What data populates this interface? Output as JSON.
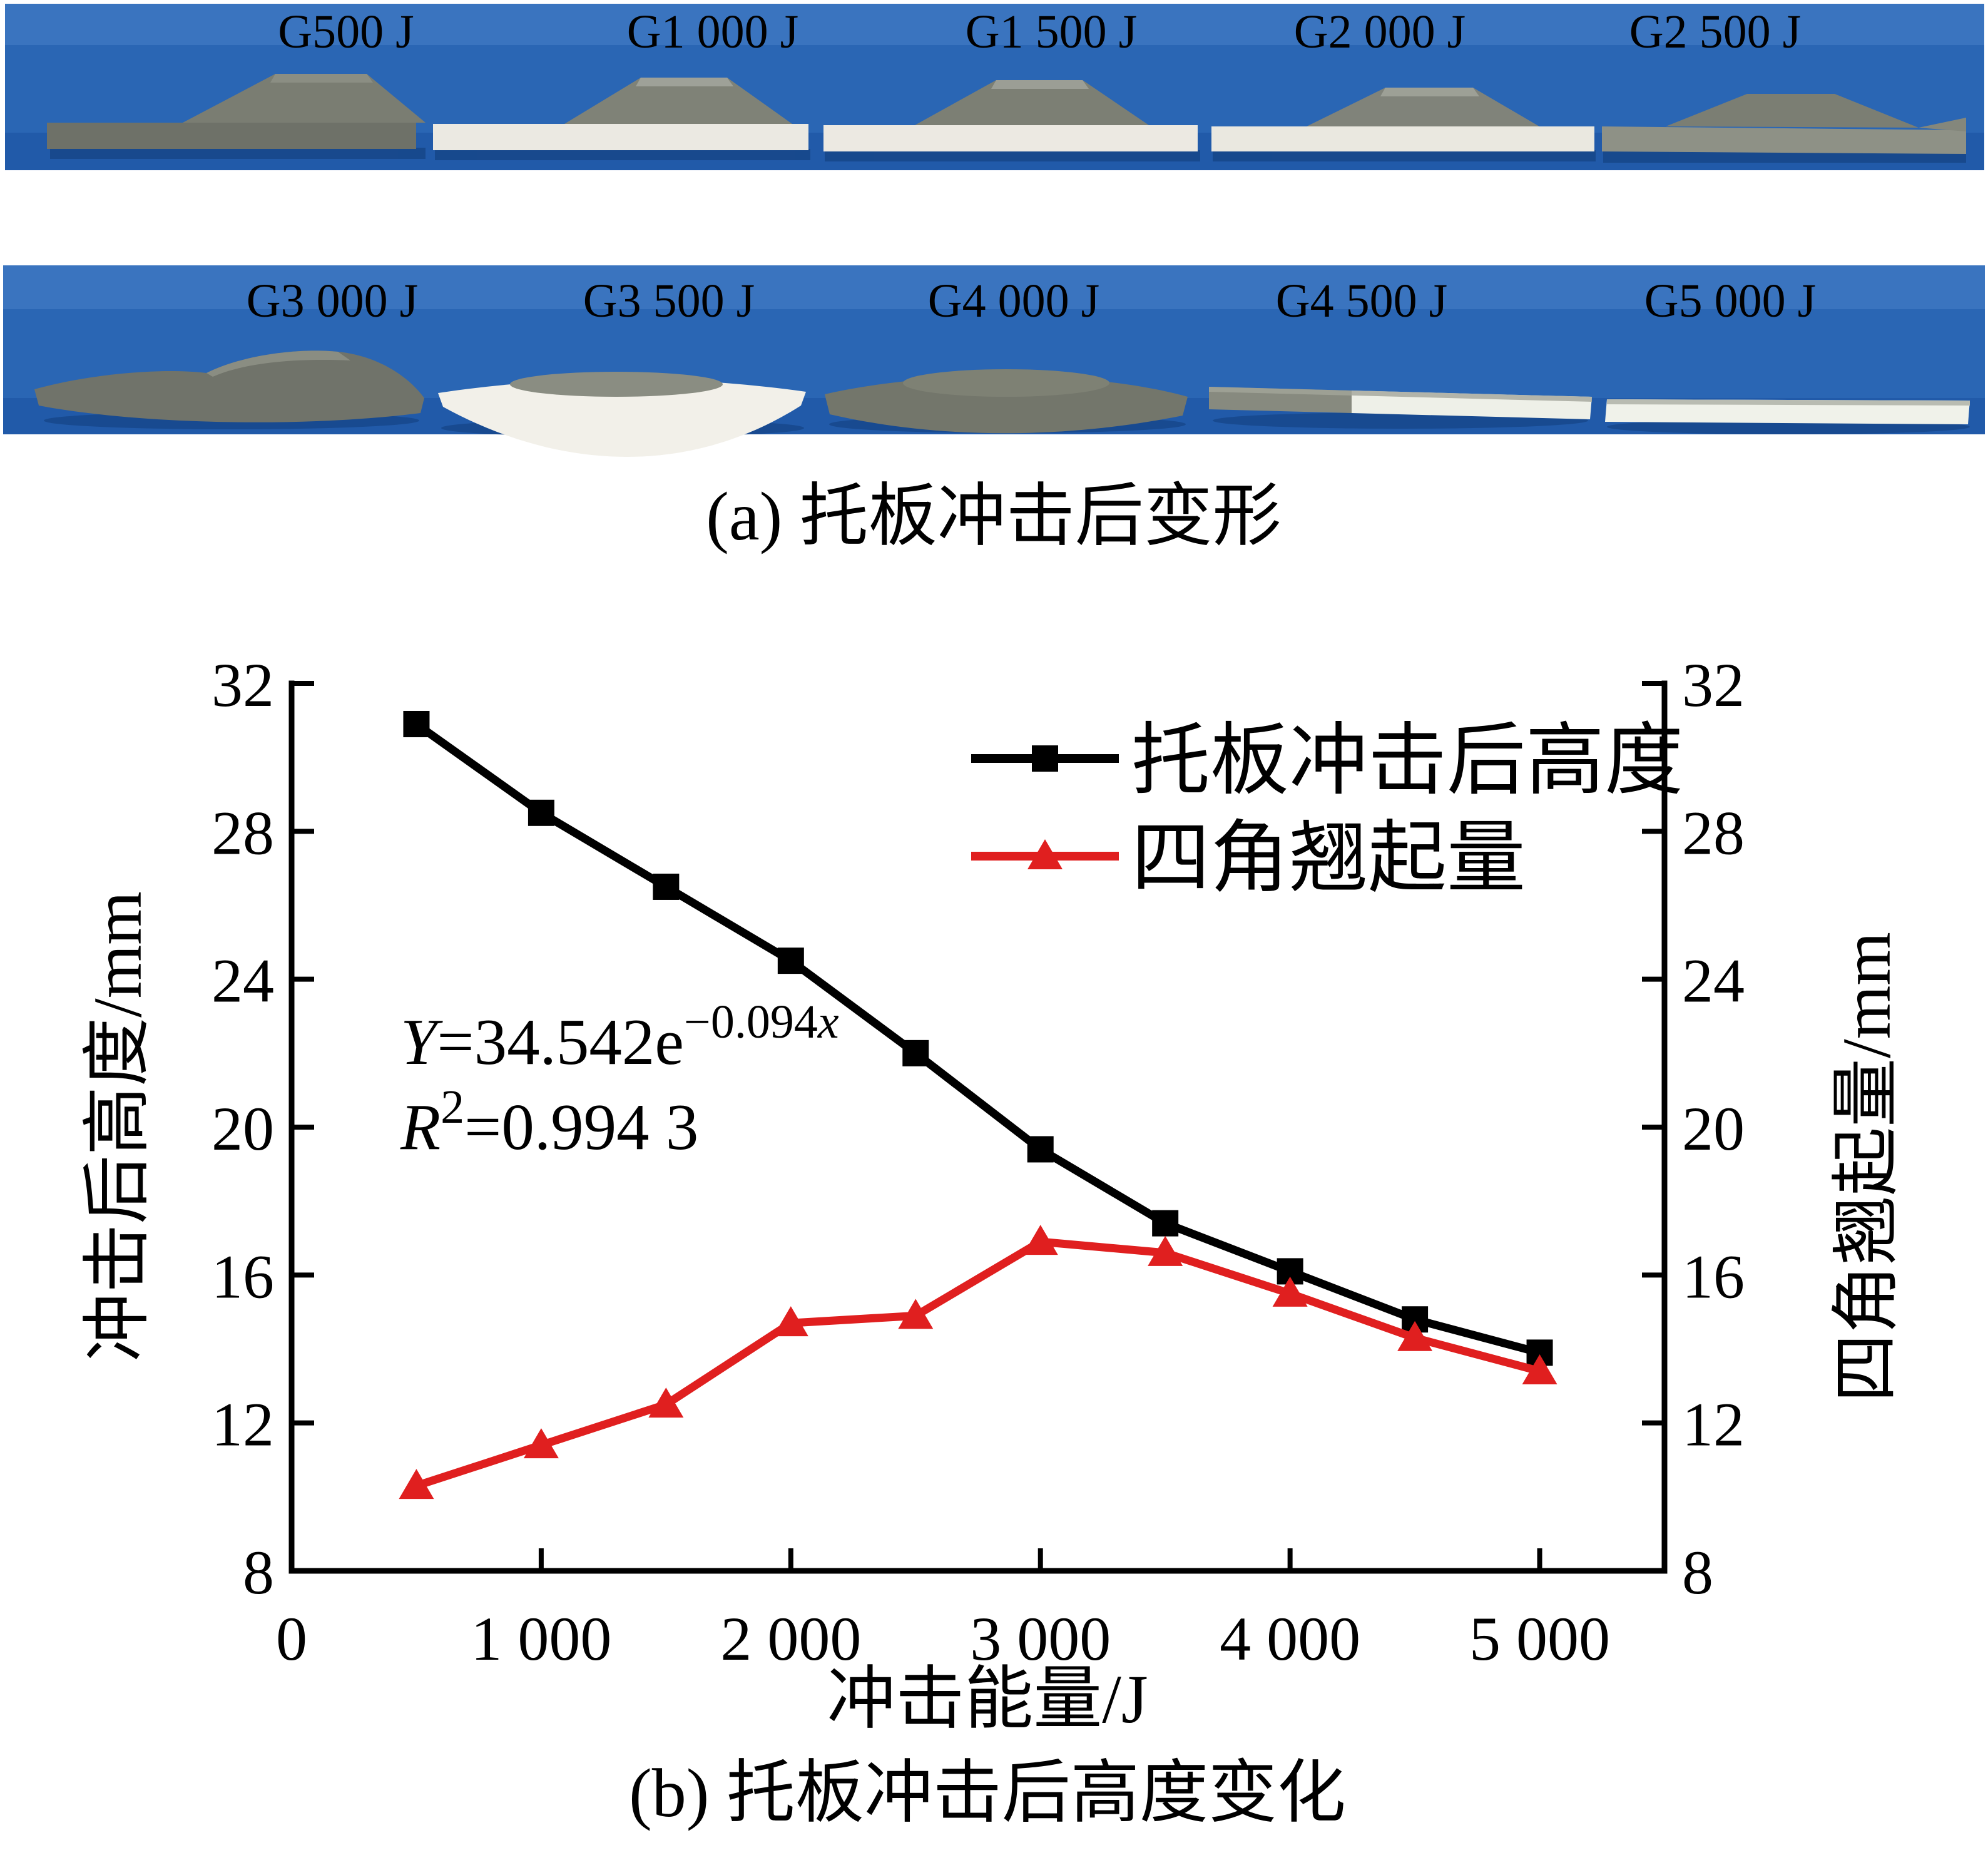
{
  "figure": {
    "panel_a": {
      "caption": "(a) 托板冲击后变形",
      "photo_background": "#2a66b4",
      "strip1_labels": [
        "G500 J",
        "G1 000 J",
        "G1 500 J",
        "G2 000 J",
        "G2 500 J"
      ],
      "strip2_labels": [
        "G3 000 J",
        "G3 500 J",
        "G4 000 J",
        "G4 500 J",
        "G5 000 J"
      ]
    },
    "panel_b": {
      "caption": "(b) 托板冲击后高度变化",
      "equation": {
        "lhs": "Y",
        "body": "=34.542e",
        "exponent": "−0.094",
        "exponent_var": "x",
        "r_label": "R",
        "r_sup": "2",
        "r_value": "=0.994 3"
      },
      "legend": {
        "series1": "托板冲击后高度",
        "series2": "四角翘起量"
      }
    }
  },
  "chart_data": {
    "type": "line",
    "title": "",
    "xlabel": "冲击能量/J",
    "ylabel_left": "冲击后高度/mm",
    "ylabel_right": "四角翘起量/mm",
    "x": [
      500,
      1000,
      1500,
      2000,
      2500,
      3000,
      3500,
      4000,
      4500,
      5000
    ],
    "series": [
      {
        "name": "托板冲击后高度",
        "axis": "left",
        "color": "#000000",
        "marker": "square",
        "values": [
          30.9,
          28.5,
          26.5,
          24.5,
          22.0,
          19.4,
          17.4,
          16.1,
          14.8,
          13.9
        ]
      },
      {
        "name": "四角翘起量",
        "axis": "right",
        "color": "#e01f1f",
        "marker": "triangle",
        "values": [
          10.3,
          11.4,
          12.5,
          14.7,
          14.9,
          16.9,
          16.6,
          15.5,
          14.3,
          13.4
        ]
      }
    ],
    "xlim": [
      0,
      5500
    ],
    "ylim": [
      8,
      32
    ],
    "xticks": [
      0,
      1000,
      2000,
      3000,
      4000,
      5000
    ],
    "xtick_labels": [
      "0",
      "1 000",
      "2 000",
      "3 000",
      "4 000",
      "5 000"
    ],
    "yticks": [
      8,
      12,
      16,
      20,
      24,
      28,
      32
    ],
    "grid": false,
    "legend_position": "upper-right-inside",
    "annotation": "Y=34.542e^(−0.094x), R²=0.994 3"
  }
}
